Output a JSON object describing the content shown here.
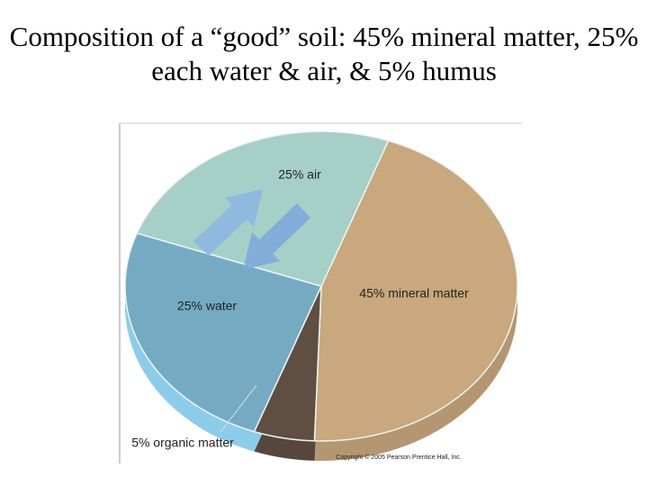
{
  "chart_data": {
    "type": "pie",
    "title": "Composition of a “good” soil: 45% mineral matter, 25% each water & air, & 5% humus",
    "values": [
      45,
      5,
      25,
      25
    ],
    "value_labels": [
      "45% mineral matter",
      "5% organic matter",
      "25% water",
      "25% air"
    ],
    "colors": [
      "#c8a87c",
      "#5f4f43",
      "#74abc2",
      "#a6cfc8"
    ],
    "credit": "Copyright © 2005 Pearson Prentice Hall, Inc."
  }
}
